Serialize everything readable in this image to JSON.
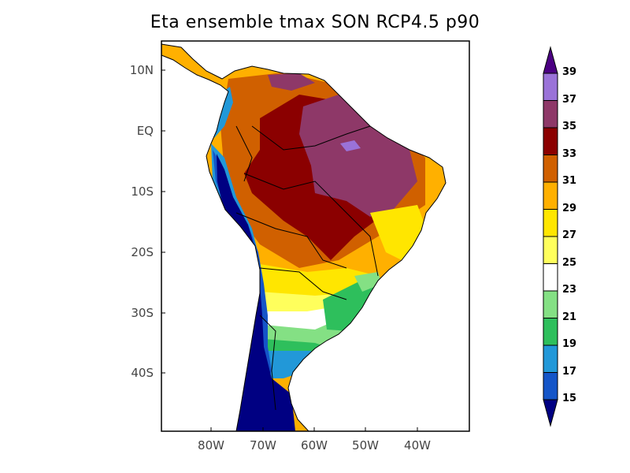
{
  "title": "Eta ensemble tmax SON RCP4.5 p90",
  "lat_labels": [
    "10N",
    "EQ",
    "10S",
    "20S",
    "30S",
    "40S"
  ],
  "lon_labels": [
    "80W",
    "70W",
    "60W",
    "50W",
    "40W"
  ],
  "colorbar": {
    "levels": [
      "15",
      "17",
      "19",
      "21",
      "23",
      "25",
      "27",
      "29",
      "31",
      "33",
      "35",
      "37",
      "39"
    ],
    "colors": [
      "#1455c8",
      "#2298d8",
      "#2ebf5c",
      "#84e084",
      "#ffffff",
      "#ffff5c",
      "#ffe600",
      "#ffb000",
      "#d06000",
      "#8b0000",
      "#8e3868",
      "#9a72d8"
    ],
    "under_color": "#000082",
    "over_color": "#4b0082"
  }
}
